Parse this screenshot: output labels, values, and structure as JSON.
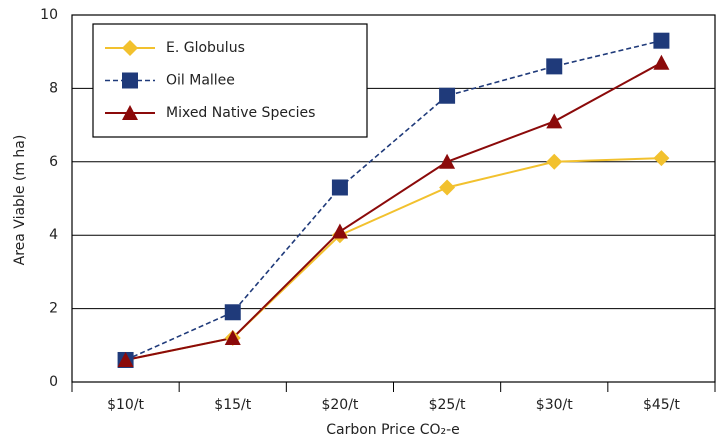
{
  "chart_data": {
    "type": "line",
    "categories": [
      "$10/t",
      "$15/t",
      "$20/t",
      "$25/t",
      "$30/t",
      "$45/t"
    ],
    "series": [
      {
        "name": "E. Globulus",
        "color": "#f2c12e",
        "marker": "diamond",
        "dash": false,
        "values": [
          0.6,
          1.2,
          4.0,
          5.3,
          6.0,
          6.1
        ]
      },
      {
        "name": "Oil Mallee",
        "color": "#1f3a7a",
        "marker": "square",
        "dash": true,
        "values": [
          0.6,
          1.9,
          5.3,
          7.8,
          8.6,
          9.3
        ]
      },
      {
        "name": "Mixed Native Species",
        "color": "#8b0a0a",
        "marker": "triangle",
        "dash": false,
        "values": [
          0.6,
          1.2,
          4.1,
          6.0,
          7.1,
          8.7
        ]
      }
    ],
    "xlabel": "Carbon Price CO₂-e",
    "ylabel": "Area Viable (m ha)",
    "ylim": [
      0,
      10
    ],
    "yticks": [
      0,
      2,
      4,
      6,
      8,
      10
    ],
    "grid": true,
    "legend": "upper left"
  }
}
